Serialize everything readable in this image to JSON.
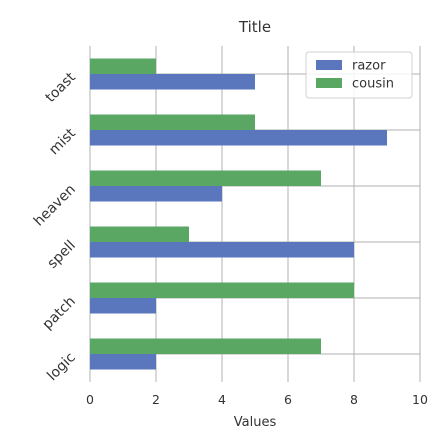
{
  "chart_data": {
    "type": "bar",
    "orientation": "horizontal",
    "title": "Title",
    "xlabel": "Values",
    "ylabel": "",
    "xlim": [
      0,
      10
    ],
    "xticks": [
      0,
      2,
      4,
      6,
      8,
      10
    ],
    "categories": [
      "logic",
      "patch",
      "spell",
      "heaven",
      "mist",
      "toast"
    ],
    "series": [
      {
        "name": "razor",
        "color": "#5a76bc",
        "values": [
          2,
          2,
          8,
          4,
          9,
          5
        ]
      },
      {
        "name": "cousin",
        "color": "#5aa763",
        "values": [
          7,
          8,
          3,
          7,
          5,
          2
        ]
      }
    ],
    "grid": true,
    "legend_position": "top-right"
  }
}
